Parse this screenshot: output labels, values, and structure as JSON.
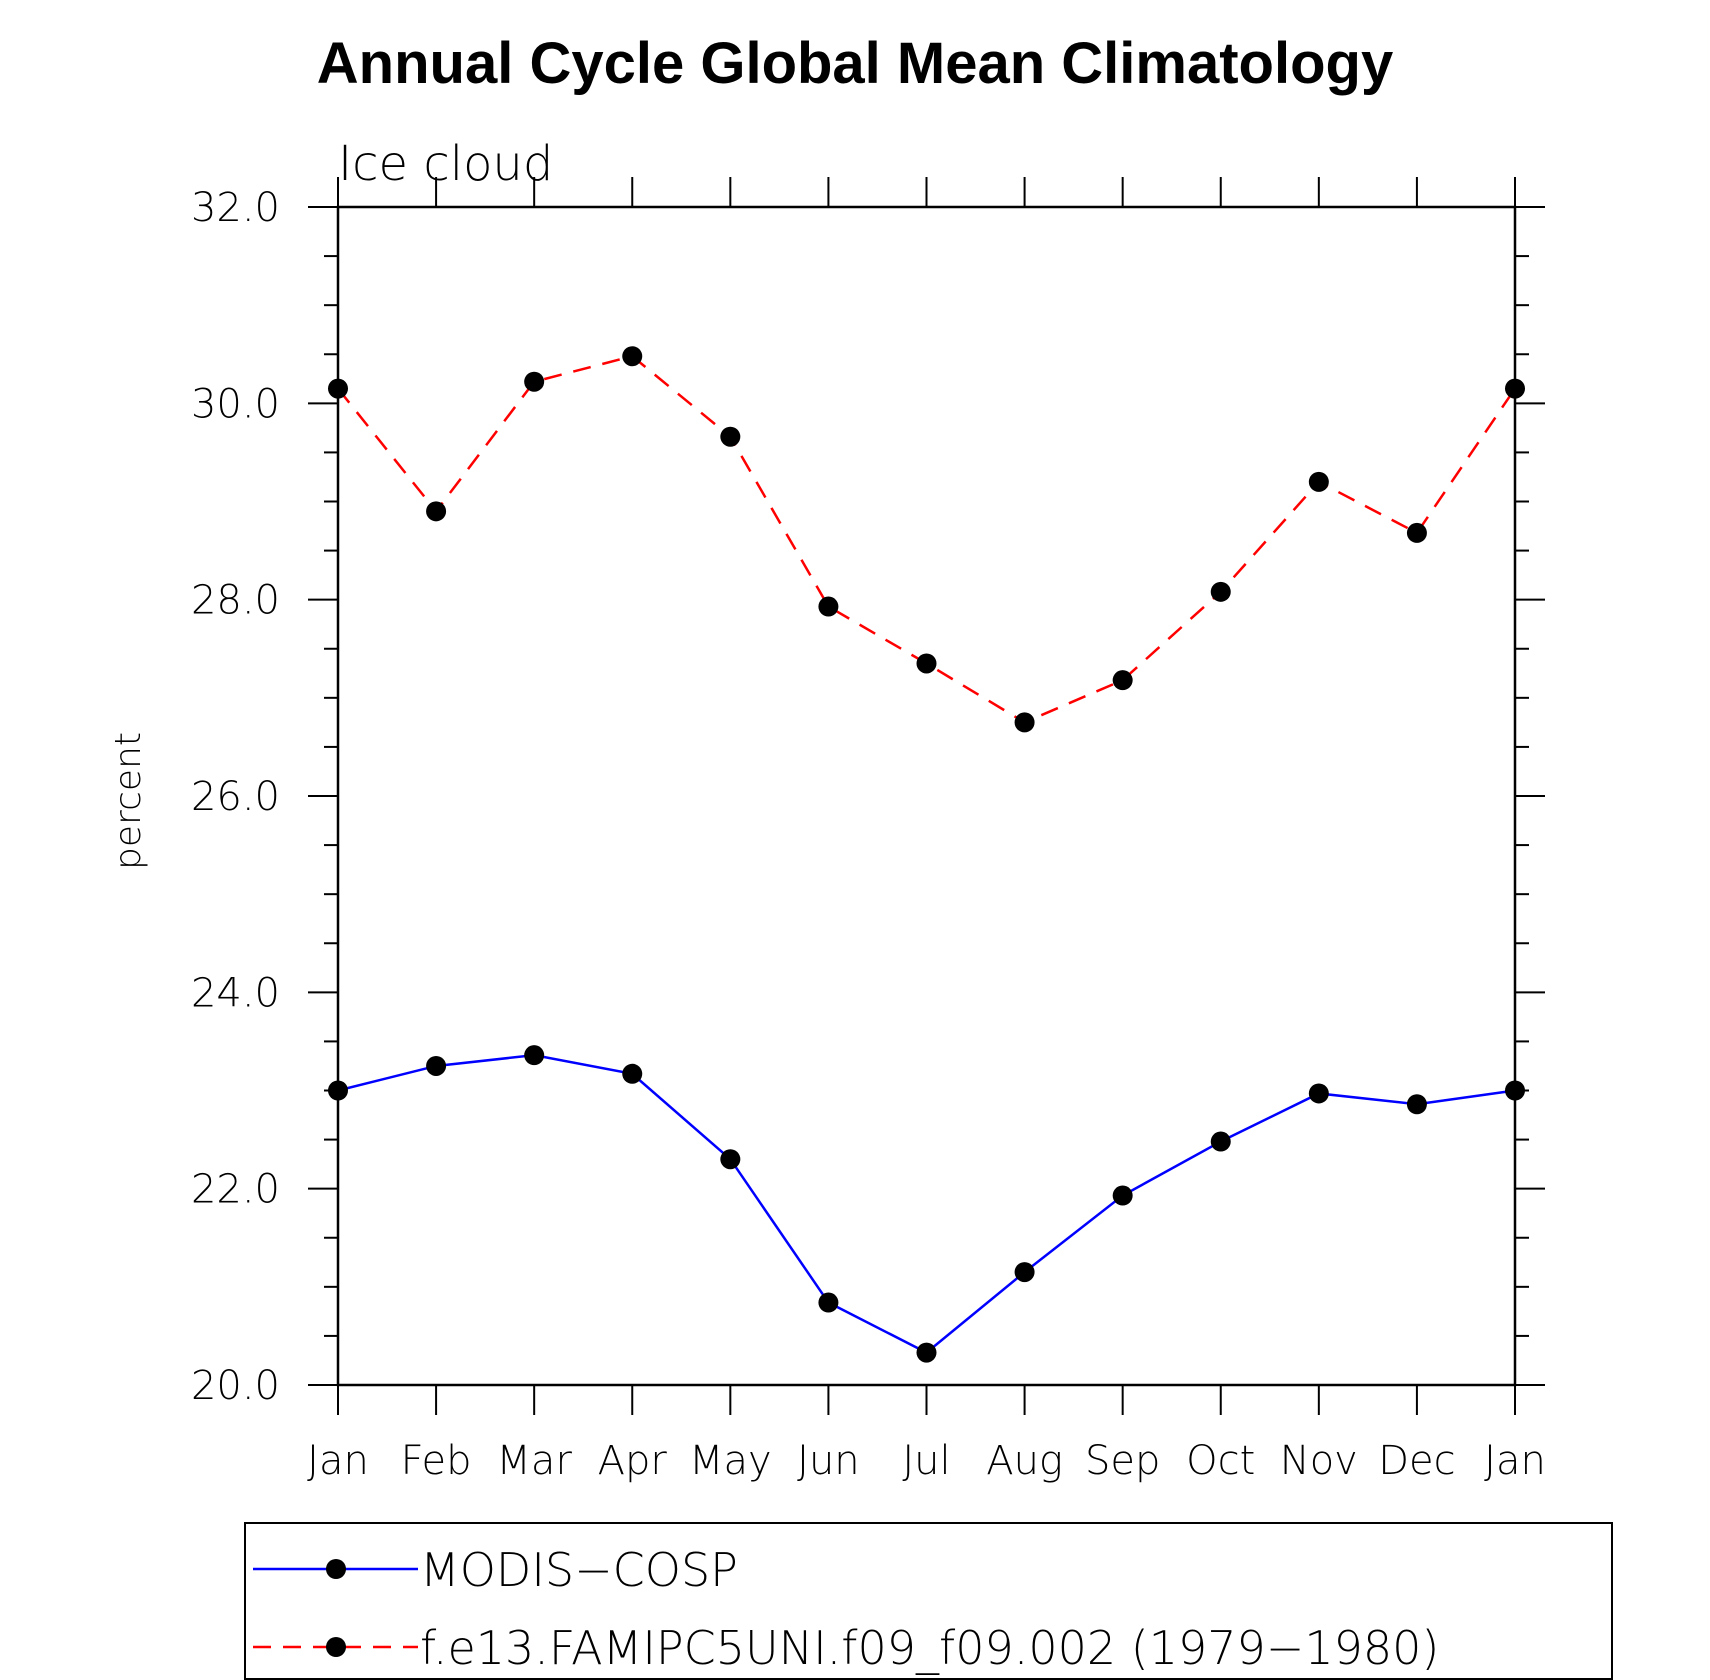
{
  "chart_data": {
    "type": "line",
    "title": "Annual Cycle Global Mean Climatology",
    "subtitle": "Ice cloud",
    "xlabel": "",
    "ylabel": "percent",
    "categories": [
      "Jan",
      "Feb",
      "Mar",
      "Apr",
      "May",
      "Jun",
      "Jul",
      "Aug",
      "Sep",
      "Oct",
      "Nov",
      "Dec",
      "Jan"
    ],
    "ylim": [
      20.0,
      32.0
    ],
    "yticks": [
      "20.0",
      "22.0",
      "24.0",
      "26.0",
      "28.0",
      "30.0",
      "32.0"
    ],
    "grid": false,
    "legend_position": "bottom",
    "series": [
      {
        "name": "MODIS−COSP",
        "color": "#0000ff",
        "style": "solid",
        "marker": "filled-circle",
        "values": [
          23.0,
          23.25,
          23.36,
          23.17,
          22.3,
          20.84,
          20.33,
          21.15,
          21.93,
          22.48,
          22.97,
          22.86,
          23.0
        ]
      },
      {
        "name": "f.e13.FAMIPC5UNI.f09_f09.002 (1979−1980)",
        "color": "#ff0000",
        "style": "dashed",
        "marker": "filled-circle",
        "values": [
          30.15,
          28.9,
          30.22,
          30.48,
          29.66,
          27.93,
          27.35,
          26.75,
          27.18,
          28.08,
          29.2,
          28.68,
          30.15
        ]
      }
    ]
  }
}
